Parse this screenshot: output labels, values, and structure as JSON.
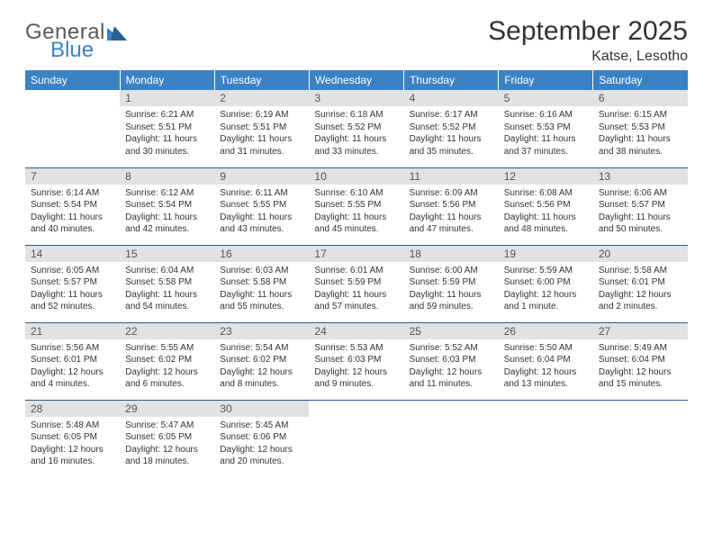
{
  "logo": {
    "word1": "General",
    "word2": "Blue",
    "word1_color": "#5a5a5a",
    "word2_color": "#3b82c4"
  },
  "title": "September 2025",
  "location": "Katse, Lesotho",
  "colors": {
    "header_bg": "#3b82c4",
    "header_text": "#ffffff",
    "row_divider": "#285e8e",
    "daynum_bg": "#e2e2e2",
    "daynum_text": "#555555",
    "body_text": "#333333",
    "page_bg": "#ffffff"
  },
  "weekdays": [
    "Sunday",
    "Monday",
    "Tuesday",
    "Wednesday",
    "Thursday",
    "Friday",
    "Saturday"
  ],
  "start_offset": 1,
  "days": [
    {
      "n": 1,
      "sunrise": "6:21 AM",
      "sunset": "5:51 PM",
      "daylight": "11 hours and 30 minutes."
    },
    {
      "n": 2,
      "sunrise": "6:19 AM",
      "sunset": "5:51 PM",
      "daylight": "11 hours and 31 minutes."
    },
    {
      "n": 3,
      "sunrise": "6:18 AM",
      "sunset": "5:52 PM",
      "daylight": "11 hours and 33 minutes."
    },
    {
      "n": 4,
      "sunrise": "6:17 AM",
      "sunset": "5:52 PM",
      "daylight": "11 hours and 35 minutes."
    },
    {
      "n": 5,
      "sunrise": "6:16 AM",
      "sunset": "5:53 PM",
      "daylight": "11 hours and 37 minutes."
    },
    {
      "n": 6,
      "sunrise": "6:15 AM",
      "sunset": "5:53 PM",
      "daylight": "11 hours and 38 minutes."
    },
    {
      "n": 7,
      "sunrise": "6:14 AM",
      "sunset": "5:54 PM",
      "daylight": "11 hours and 40 minutes."
    },
    {
      "n": 8,
      "sunrise": "6:12 AM",
      "sunset": "5:54 PM",
      "daylight": "11 hours and 42 minutes."
    },
    {
      "n": 9,
      "sunrise": "6:11 AM",
      "sunset": "5:55 PM",
      "daylight": "11 hours and 43 minutes."
    },
    {
      "n": 10,
      "sunrise": "6:10 AM",
      "sunset": "5:55 PM",
      "daylight": "11 hours and 45 minutes."
    },
    {
      "n": 11,
      "sunrise": "6:09 AM",
      "sunset": "5:56 PM",
      "daylight": "11 hours and 47 minutes."
    },
    {
      "n": 12,
      "sunrise": "6:08 AM",
      "sunset": "5:56 PM",
      "daylight": "11 hours and 48 minutes."
    },
    {
      "n": 13,
      "sunrise": "6:06 AM",
      "sunset": "5:57 PM",
      "daylight": "11 hours and 50 minutes."
    },
    {
      "n": 14,
      "sunrise": "6:05 AM",
      "sunset": "5:57 PM",
      "daylight": "11 hours and 52 minutes."
    },
    {
      "n": 15,
      "sunrise": "6:04 AM",
      "sunset": "5:58 PM",
      "daylight": "11 hours and 54 minutes."
    },
    {
      "n": 16,
      "sunrise": "6:03 AM",
      "sunset": "5:58 PM",
      "daylight": "11 hours and 55 minutes."
    },
    {
      "n": 17,
      "sunrise": "6:01 AM",
      "sunset": "5:59 PM",
      "daylight": "11 hours and 57 minutes."
    },
    {
      "n": 18,
      "sunrise": "6:00 AM",
      "sunset": "5:59 PM",
      "daylight": "11 hours and 59 minutes."
    },
    {
      "n": 19,
      "sunrise": "5:59 AM",
      "sunset": "6:00 PM",
      "daylight": "12 hours and 1 minute."
    },
    {
      "n": 20,
      "sunrise": "5:58 AM",
      "sunset": "6:01 PM",
      "daylight": "12 hours and 2 minutes."
    },
    {
      "n": 21,
      "sunrise": "5:56 AM",
      "sunset": "6:01 PM",
      "daylight": "12 hours and 4 minutes."
    },
    {
      "n": 22,
      "sunrise": "5:55 AM",
      "sunset": "6:02 PM",
      "daylight": "12 hours and 6 minutes."
    },
    {
      "n": 23,
      "sunrise": "5:54 AM",
      "sunset": "6:02 PM",
      "daylight": "12 hours and 8 minutes."
    },
    {
      "n": 24,
      "sunrise": "5:53 AM",
      "sunset": "6:03 PM",
      "daylight": "12 hours and 9 minutes."
    },
    {
      "n": 25,
      "sunrise": "5:52 AM",
      "sunset": "6:03 PM",
      "daylight": "12 hours and 11 minutes."
    },
    {
      "n": 26,
      "sunrise": "5:50 AM",
      "sunset": "6:04 PM",
      "daylight": "12 hours and 13 minutes."
    },
    {
      "n": 27,
      "sunrise": "5:49 AM",
      "sunset": "6:04 PM",
      "daylight": "12 hours and 15 minutes."
    },
    {
      "n": 28,
      "sunrise": "5:48 AM",
      "sunset": "6:05 PM",
      "daylight": "12 hours and 16 minutes."
    },
    {
      "n": 29,
      "sunrise": "5:47 AM",
      "sunset": "6:05 PM",
      "daylight": "12 hours and 18 minutes."
    },
    {
      "n": 30,
      "sunrise": "5:45 AM",
      "sunset": "6:06 PM",
      "daylight": "12 hours and 20 minutes."
    }
  ],
  "labels": {
    "sunrise": "Sunrise:",
    "sunset": "Sunset:",
    "daylight": "Daylight:"
  }
}
